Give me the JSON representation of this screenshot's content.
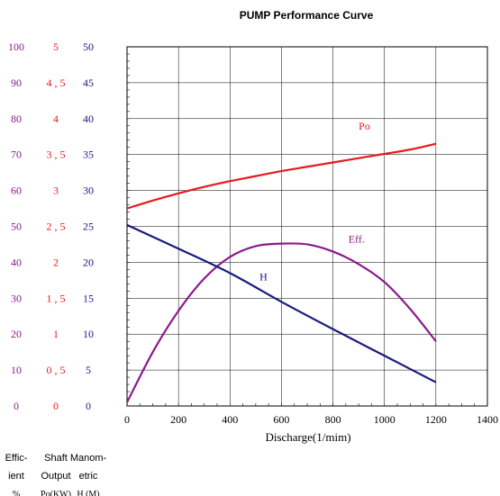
{
  "chart_data": {
    "type": "line",
    "title": "PUMP Performance Curve",
    "xlabel": "Discharge(1/mim)",
    "xlim": [
      0,
      1400
    ],
    "x_ticks": [
      "0",
      "200",
      "400",
      "600",
      "800",
      "1000",
      "1200",
      "1400"
    ],
    "grid": true,
    "colors": {
      "purple": "#8B1A8B",
      "red": "#E8191C",
      "navy": "#1A1A7E",
      "grid": "#000000"
    },
    "y_axes": [
      {
        "key": "eff",
        "header": [
          "Effic-",
          "ient",
          "%"
        ],
        "color": "#8B1A8B",
        "ylim": [
          0,
          100
        ],
        "ticks": [
          "0",
          "10",
          "20",
          "30",
          "40",
          "50",
          "60",
          "70",
          "80",
          "90",
          "100"
        ]
      },
      {
        "key": "po",
        "header": [
          "Shaft",
          "Output",
          "Po(KW)"
        ],
        "color": "#E8191C",
        "ylim": [
          0,
          5
        ],
        "ticks": [
          "0",
          "0 , 5",
          "1",
          "1 , 5",
          "2",
          "2 , 5",
          "3",
          "3 , 5",
          "4",
          "4 , 5",
          "5"
        ]
      },
      {
        "key": "h",
        "header": [
          "Manom-",
          "etric",
          "H (M)"
        ],
        "color": "#1A1A7E",
        "ylim": [
          0,
          50
        ],
        "ticks": [
          "0",
          "5",
          "10",
          "15",
          "20",
          "25",
          "30",
          "35",
          "40",
          "45",
          "50"
        ]
      }
    ],
    "series": [
      {
        "name": "Po",
        "axis": "po",
        "color": "#E8191C",
        "x": [
          0,
          100,
          200,
          300,
          400,
          500,
          600,
          700,
          800,
          900,
          1000,
          1100,
          1200
        ],
        "values": [
          2.75,
          2.86,
          2.96,
          3.05,
          3.13,
          3.2,
          3.27,
          3.33,
          3.39,
          3.45,
          3.51,
          3.57,
          3.65
        ]
      },
      {
        "name": "Eff.",
        "axis": "eff",
        "color": "#8B1A8B",
        "x": [
          0,
          100,
          200,
          300,
          400,
          500,
          600,
          700,
          800,
          900,
          1000,
          1100,
          1200
        ],
        "values": [
          1,
          15,
          26.5,
          35.5,
          41.5,
          44.5,
          45.2,
          45,
          43,
          39.5,
          34.5,
          27,
          18
        ]
      },
      {
        "name": "H",
        "axis": "h",
        "color": "#1A1A7E",
        "x": [
          0,
          200,
          400,
          600,
          800,
          1000,
          1200
        ],
        "values": [
          25.2,
          21.9,
          18.5,
          14.5,
          10.7,
          7,
          3.3
        ]
      }
    ]
  }
}
